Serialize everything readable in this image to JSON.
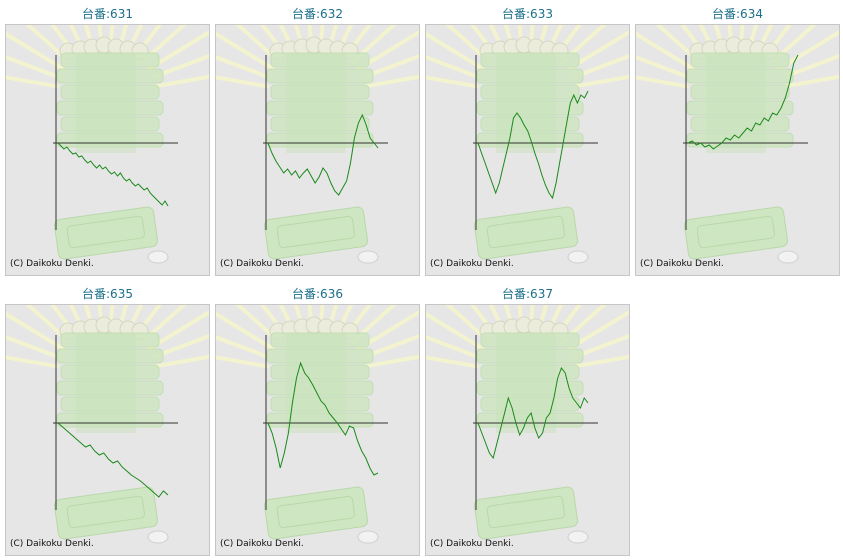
{
  "chart_data": [
    {
      "type": "line",
      "title": "台番:631",
      "copyright": "(C) Daikoku Denki.",
      "color": "#1a8a1a",
      "values": [
        0,
        -3,
        -6,
        -4,
        -8,
        -11,
        -10,
        -14,
        -13,
        -17,
        -20,
        -18,
        -22,
        -25,
        -22,
        -26,
        -24,
        -28,
        -31,
        -29,
        -33,
        -30,
        -35,
        -38,
        -36,
        -40,
        -43,
        -41,
        -44,
        -47,
        -45,
        -50,
        -53,
        -56,
        -59,
        -62,
        -58,
        -63
      ]
    },
    {
      "type": "line",
      "title": "台番:632",
      "copyright": "(C) Daikoku Denki.",
      "color": "#1a8a1a",
      "values": [
        0,
        -10,
        -18,
        -24,
        -30,
        -26,
        -32,
        -28,
        -35,
        -30,
        -26,
        -33,
        -40,
        -34,
        -25,
        -30,
        -40,
        -48,
        -52,
        -45,
        -38,
        -20,
        5,
        20,
        28,
        18,
        5,
        0,
        -5
      ]
    },
    {
      "type": "line",
      "title": "台番:633",
      "copyright": "(C) Daikoku Denki.",
      "color": "#1a8a1a",
      "values": [
        0,
        -10,
        -20,
        -30,
        -40,
        -50,
        -40,
        -25,
        -10,
        5,
        25,
        30,
        25,
        18,
        12,
        2,
        -10,
        -20,
        -32,
        -42,
        -50,
        -55,
        -40,
        -20,
        0,
        20,
        40,
        48,
        40,
        48,
        45,
        52
      ]
    },
    {
      "type": "line",
      "title": "台番:634",
      "copyright": "(C) Daikoku Denki.",
      "color": "#1a8a1a",
      "values": [
        0,
        2,
        -2,
        0,
        -4,
        -2,
        -6,
        -3,
        0,
        5,
        3,
        8,
        5,
        10,
        15,
        12,
        20,
        18,
        25,
        22,
        30,
        28,
        35,
        45,
        60,
        80,
        100
      ]
    },
    {
      "type": "line",
      "title": "台番:635",
      "copyright": "(C) Daikoku Denki.",
      "color": "#1a8a1a",
      "values": [
        0,
        -4,
        -8,
        -12,
        -16,
        -20,
        -24,
        -22,
        -28,
        -32,
        -30,
        -36,
        -40,
        -38,
        -44,
        -48,
        -52,
        -55,
        -58,
        -62,
        -66,
        -70,
        -74,
        -68,
        -72
      ]
    },
    {
      "type": "line",
      "title": "台番:636",
      "copyright": "(C) Daikoku Denki.",
      "color": "#1a8a1a",
      "values": [
        0,
        -10,
        -25,
        -45,
        -30,
        -10,
        20,
        45,
        60,
        50,
        45,
        38,
        30,
        22,
        18,
        10,
        5,
        0,
        -6,
        -12,
        -3,
        -5,
        -18,
        -28,
        -35,
        -45,
        -52,
        -50
      ]
    },
    {
      "type": "line",
      "title": "台番:637",
      "copyright": "(C) Daikoku Denki.",
      "color": "#1a8a1a",
      "values": [
        0,
        -10,
        -20,
        -30,
        -35,
        -20,
        -5,
        10,
        25,
        15,
        0,
        -12,
        -5,
        5,
        10,
        -5,
        -15,
        -10,
        5,
        10,
        25,
        45,
        55,
        50,
        35,
        25,
        20,
        15,
        25,
        20
      ]
    }
  ]
}
